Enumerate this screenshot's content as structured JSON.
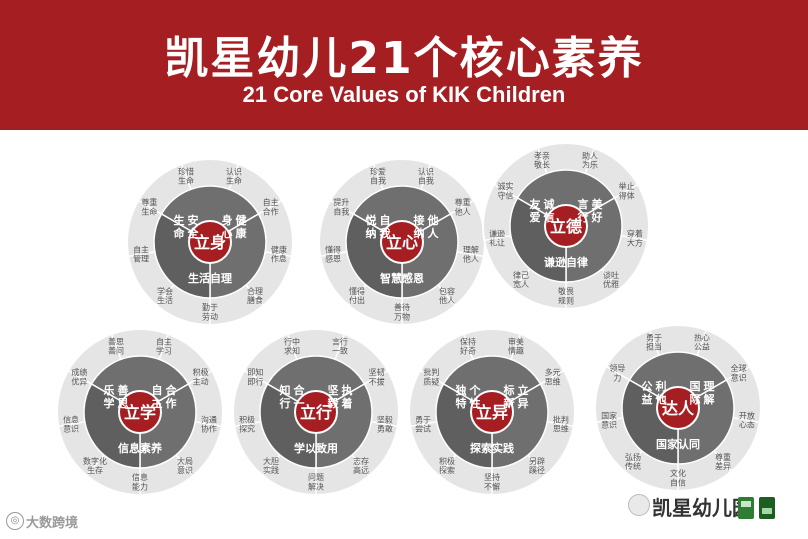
{
  "header": {
    "title_zh": "凯星幼儿21个核心素养",
    "title_en": "21 Core Values of KIK Children"
  },
  "colors": {
    "brand_red": "#a51e22",
    "wheel_grey": "#a3a3a3",
    "dark_grey": "#6f6f6f",
    "light_grey": "#e5e5e5"
  },
  "wheels": [
    {
      "center": "立身",
      "values": [
        "生命安全",
        "身心健康",
        "生活自理"
      ],
      "outer": [
        "认识生命",
        "自主合作",
        "健康作息",
        "合理膳食",
        "勤于劳动",
        "学会生活",
        "自主管理",
        "尊重生命",
        "珍惜生命"
      ]
    },
    {
      "center": "立心",
      "values": [
        "悦纳自我",
        "接纳他人",
        "智慧感恩"
      ],
      "outer": [
        "认识自我",
        "尊重他人",
        "理解他人",
        "包容他人",
        "善待万物",
        "懂得付出",
        "懂得感恩",
        "提升自我",
        "珍爱自我"
      ]
    },
    {
      "center": "立德",
      "values": [
        "友爱诚信",
        "言行美好",
        "谦逊自律"
      ],
      "outer": [
        "助人为乐",
        "举止得体",
        "穿着大方",
        "谈吐优雅",
        "敬畏规则",
        "律己宽人",
        "谦逊礼让",
        "诚实守信",
        "孝亲敬长"
      ]
    },
    {
      "center": "立学",
      "values": [
        "乐学善思",
        "自主合作",
        "信息素养"
      ],
      "outer": [
        "自主学习",
        "积极主动",
        "沟通协作",
        "大局意识",
        "信息能力",
        "数字化生存",
        "信息意识",
        "成绩优异",
        "善思善问"
      ]
    },
    {
      "center": "立行",
      "values": [
        "知行合一",
        "坚毅执着",
        "学以致用"
      ],
      "outer": [
        "言行一致",
        "坚韧不拔",
        "坚毅勇敢",
        "志存高远",
        "问题解决",
        "大胆实践",
        "积极探究",
        "即知即行",
        "行中求知"
      ]
    },
    {
      "center": "立异",
      "values": [
        "独特个性",
        "标新立异",
        "探索实践"
      ],
      "outer": [
        "审美情趣",
        "多元思维",
        "批判思维",
        "另辟蹊径",
        "坚持不懈",
        "积极探索",
        "勇于尝试",
        "批判质疑",
        "保持好奇"
      ]
    },
    {
      "center": "达人",
      "values": [
        "公益利他",
        "国际理解",
        "国家认同"
      ],
      "outer": [
        "热心公益",
        "全球意识",
        "开放心态",
        "尊重差异",
        "文化自信",
        "弘扬传统",
        "国家意识",
        "领导力",
        "勇于担当"
      ]
    }
  ],
  "footer": {
    "watermark_left": "大数跨境",
    "watermark_right": "凯星幼儿园"
  }
}
